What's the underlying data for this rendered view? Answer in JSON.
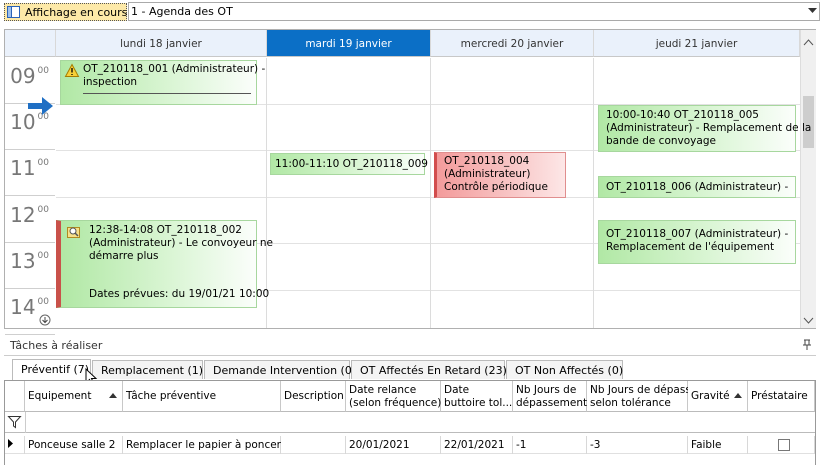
{
  "toolbar": {
    "button": "Affichage en cours",
    "view": "1 - Agenda des OT"
  },
  "calendar": {
    "days": [
      "lundi 18 janvier",
      "mardi 19 janvier",
      "mercredi 20 janvier",
      "jeudi 21 janvier"
    ],
    "hours": [
      {
        "hour": "09",
        "minutes": "00"
      },
      {
        "hour": "10",
        "minutes": "00"
      },
      {
        "hour": "11",
        "minutes": "00"
      },
      {
        "hour": "12",
        "minutes": "00"
      },
      {
        "hour": "13",
        "minutes": "00"
      },
      {
        "hour": "14",
        "minutes": "00"
      }
    ],
    "appointments": [
      {
        "lines": [
          "OT_210118_001 (Administrateur) -",
          "inspection"
        ]
      },
      {
        "lines": [
          "10:00-10:40 OT_210118_005",
          "(Administrateur) - Remplacement de la",
          "bande de convoyage"
        ]
      },
      {
        "lines": [
          "11:00-11:10 OT_210118_009"
        ]
      },
      {
        "lines": [
          "OT_210118_004",
          "(Administrateur)",
          "Contrôle périodique"
        ]
      },
      {
        "lines": [
          "OT_210118_006 (Administrateur) -"
        ]
      },
      {
        "lines": [
          "12:38-14:08 OT_210118_002",
          "(Administrateur) - Le convoyeur ne",
          "démarre plus"
        ],
        "footer": "Dates prévues: du 19/01/21 10:00"
      },
      {
        "lines": [
          "OT_210118_007 (Administrateur) -",
          "Remplacement de l'équipement"
        ]
      }
    ]
  },
  "tasks": {
    "title": "Tâches à réaliser",
    "tabs": [
      "Préventif (7)",
      "Remplacement (1)",
      "Demande Intervention (0)",
      "OT Affectés En Retard (23)",
      "OT Non Affectés (0)"
    ],
    "columns": [
      [
        "Equipement"
      ],
      [
        "Tâche préventive"
      ],
      [
        "Description"
      ],
      [
        "Date relance",
        "(selon fréquence)"
      ],
      [
        "Date",
        "buttoire tol..."
      ],
      [
        "Nb Jours de",
        "dépassement"
      ],
      [
        "Nb Jours de dépass",
        "selon tolérance"
      ],
      [
        "Gravité"
      ],
      [
        "Préstataire"
      ]
    ],
    "rows": [
      {
        "equipement": "Ponceuse salle 2",
        "tache": "Remplacer le papier à poncer",
        "date_relance": "20/01/2021",
        "date_buttoire": "22/01/2021",
        "nb_jours": "-1",
        "nb_jours_tolerance": "-3",
        "gravite": "Faible"
      }
    ]
  }
}
